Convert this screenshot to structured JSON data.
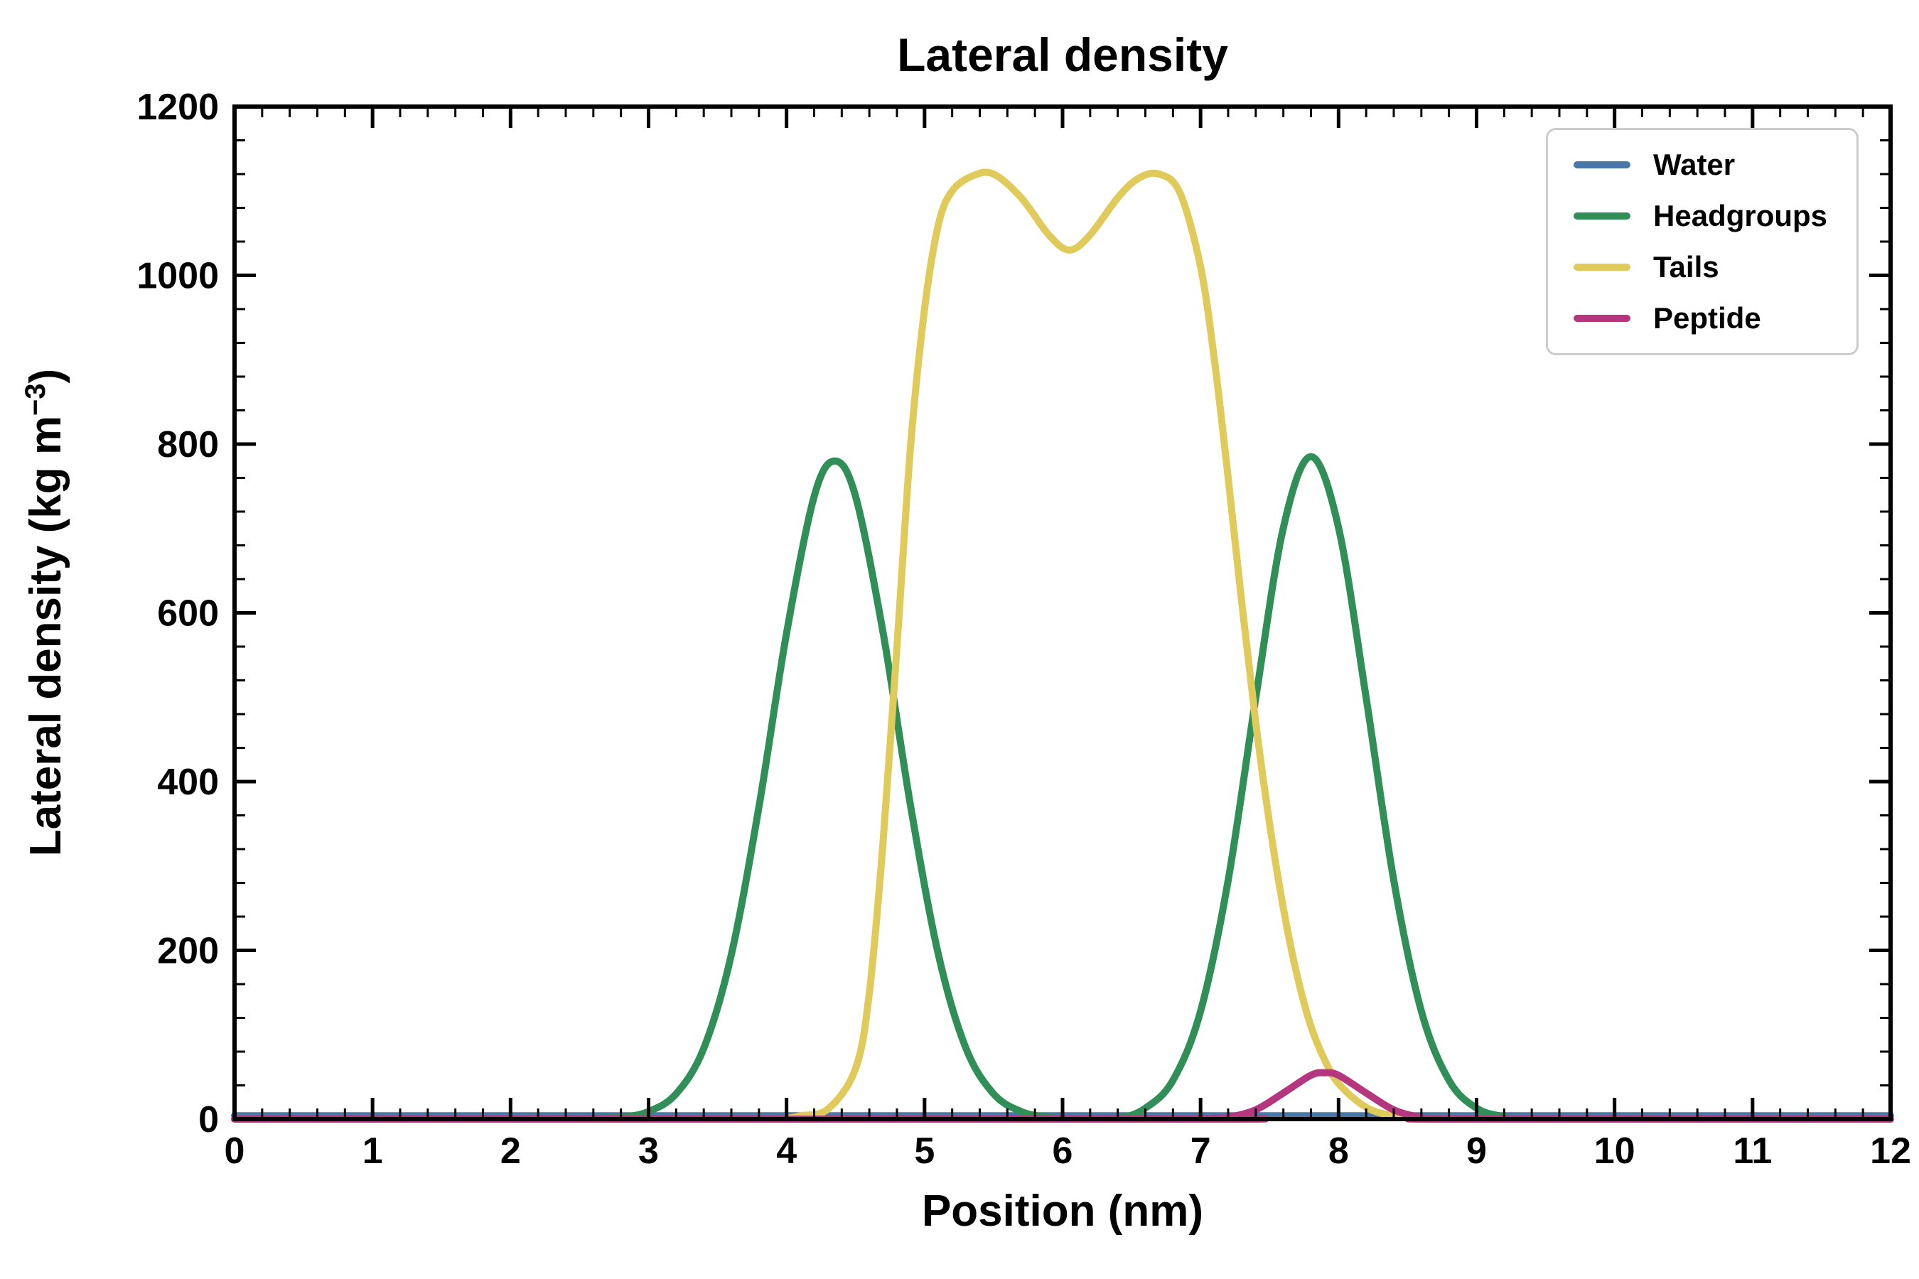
{
  "figure": {
    "title": "Lateral density",
    "xlabel": "Position (nm)",
    "ylabel_pre": "Lateral density (kg m",
    "ylabel_sup": "−3",
    "ylabel_post": ")",
    "background": "#ffffff",
    "spine_color": "#000000"
  },
  "chart_data": {
    "type": "line",
    "title": "Lateral density",
    "xlabel": "Position (nm)",
    "ylabel": "Lateral density (kg m^-3)",
    "xlim": [
      0,
      12
    ],
    "ylim": [
      0,
      1200
    ],
    "xticks": [
      0,
      1,
      2,
      3,
      4,
      5,
      6,
      7,
      8,
      9,
      10,
      11,
      12
    ],
    "yticks": [
      0,
      200,
      400,
      600,
      800,
      1000,
      1200
    ],
    "x_minor_step": 0.2,
    "y_minor_step": 40,
    "grid": false,
    "legend_position": "upper right",
    "series": [
      {
        "name": "Water",
        "color": "#4878a8",
        "points": [
          [
            0,
            4
          ],
          [
            3,
            4
          ],
          [
            6,
            4
          ],
          [
            9,
            4
          ],
          [
            12,
            4
          ]
        ]
      },
      {
        "name": "Headgroups",
        "color": "#2f8f57",
        "points": [
          [
            0,
            0
          ],
          [
            2.4,
            0
          ],
          [
            2.6,
            1
          ],
          [
            2.8,
            2
          ],
          [
            3.0,
            9
          ],
          [
            3.2,
            30
          ],
          [
            3.4,
            84
          ],
          [
            3.6,
            195
          ],
          [
            3.8,
            370
          ],
          [
            4.0,
            576
          ],
          [
            4.2,
            738
          ],
          [
            4.35,
            780
          ],
          [
            4.5,
            738
          ],
          [
            4.7,
            576
          ],
          [
            4.9,
            370
          ],
          [
            5.1,
            195
          ],
          [
            5.3,
            84
          ],
          [
            5.5,
            30
          ],
          [
            5.7,
            9
          ],
          [
            5.9,
            2
          ],
          [
            6.1,
            0
          ],
          [
            6.4,
            1
          ],
          [
            6.6,
            13
          ],
          [
            6.8,
            46
          ],
          [
            7.0,
            128
          ],
          [
            7.2,
            283
          ],
          [
            7.4,
            499
          ],
          [
            7.6,
            701
          ],
          [
            7.8,
            785
          ],
          [
            8.0,
            701
          ],
          [
            8.2,
            499
          ],
          [
            8.4,
            283
          ],
          [
            8.6,
            128
          ],
          [
            8.8,
            46
          ],
          [
            9.0,
            13
          ],
          [
            9.2,
            3
          ],
          [
            9.4,
            0
          ],
          [
            12,
            0
          ]
        ]
      },
      {
        "name": "Tails",
        "color": "#e0ca5a",
        "points": [
          [
            0,
            0
          ],
          [
            3.8,
            0
          ],
          [
            4.0,
            1
          ],
          [
            4.1,
            4
          ],
          [
            4.3,
            12
          ],
          [
            4.5,
            60
          ],
          [
            4.6,
            150
          ],
          [
            4.7,
            330
          ],
          [
            4.8,
            560
          ],
          [
            4.9,
            800
          ],
          [
            5.0,
            960
          ],
          [
            5.1,
            1060
          ],
          [
            5.2,
            1100
          ],
          [
            5.35,
            1118
          ],
          [
            5.5,
            1120
          ],
          [
            5.7,
            1092
          ],
          [
            5.9,
            1048
          ],
          [
            6.05,
            1030
          ],
          [
            6.2,
            1048
          ],
          [
            6.4,
            1092
          ],
          [
            6.55,
            1115
          ],
          [
            6.7,
            1120
          ],
          [
            6.85,
            1098
          ],
          [
            7.0,
            1010
          ],
          [
            7.1,
            900
          ],
          [
            7.2,
            760
          ],
          [
            7.3,
            610
          ],
          [
            7.4,
            470
          ],
          [
            7.5,
            350
          ],
          [
            7.6,
            250
          ],
          [
            7.7,
            170
          ],
          [
            7.8,
            110
          ],
          [
            7.9,
            70
          ],
          [
            8.0,
            42
          ],
          [
            8.2,
            14
          ],
          [
            8.4,
            4
          ],
          [
            8.6,
            1
          ],
          [
            8.8,
            0
          ],
          [
            12,
            0
          ]
        ]
      },
      {
        "name": "Peptide",
        "color": "#b5357e",
        "points": [
          [
            0,
            0
          ],
          [
            6.9,
            0
          ],
          [
            7.1,
            1
          ],
          [
            7.2,
            2
          ],
          [
            7.4,
            11
          ],
          [
            7.6,
            31
          ],
          [
            7.8,
            52
          ],
          [
            7.9,
            55
          ],
          [
            8.0,
            52
          ],
          [
            8.2,
            31
          ],
          [
            8.4,
            11
          ],
          [
            8.6,
            2
          ],
          [
            8.8,
            0
          ],
          [
            12,
            0
          ]
        ]
      }
    ]
  }
}
